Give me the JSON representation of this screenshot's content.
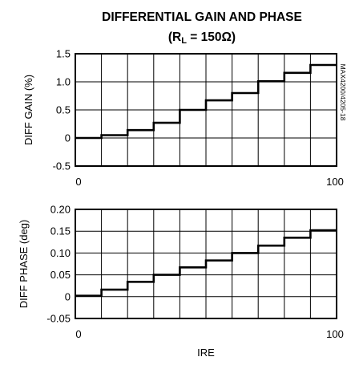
{
  "title_line1": "DIFFERENTIAL GAIN AND PHASE",
  "title_line2_prefix": "(R",
  "title_line2_sub": "L",
  "title_line2_suffix": " = 150Ω)",
  "part_code": "MAX4200/4205-18",
  "chart_data": [
    {
      "type": "line",
      "step": true,
      "ylabel": "DIFF GAIN (%)",
      "xlabel": "",
      "xlim": [
        0,
        100
      ],
      "ylim": [
        -0.5,
        1.5
      ],
      "x_ticks": [
        "0",
        "100"
      ],
      "y_ticks": [
        "1.5",
        "1.0",
        "0.5",
        "0",
        "-0.5"
      ],
      "grid": true,
      "series": [
        {
          "x": [
            0,
            10,
            20,
            30,
            40,
            50,
            60,
            70,
            80,
            90,
            100
          ],
          "values": [
            0,
            0.05,
            0.14,
            0.27,
            0.5,
            0.67,
            0.8,
            1.01,
            1.16,
            1.3,
            1.3
          ]
        }
      ]
    },
    {
      "type": "line",
      "step": true,
      "ylabel": "DIFF PHASE (deg)",
      "xlabel": "IRE",
      "xlim": [
        0,
        100
      ],
      "ylim": [
        -0.05,
        0.2
      ],
      "x_ticks": [
        "0",
        "100"
      ],
      "y_ticks": [
        "0.20",
        "0.15",
        "0.10",
        "0.05",
        "0",
        "-0.05"
      ],
      "grid": true,
      "series": [
        {
          "x": [
            0,
            10,
            20,
            30,
            40,
            50,
            60,
            70,
            80,
            90,
            100
          ],
          "values": [
            0.002,
            0.016,
            0.034,
            0.05,
            0.067,
            0.083,
            0.1,
            0.117,
            0.135,
            0.152,
            0.152
          ]
        }
      ]
    }
  ]
}
